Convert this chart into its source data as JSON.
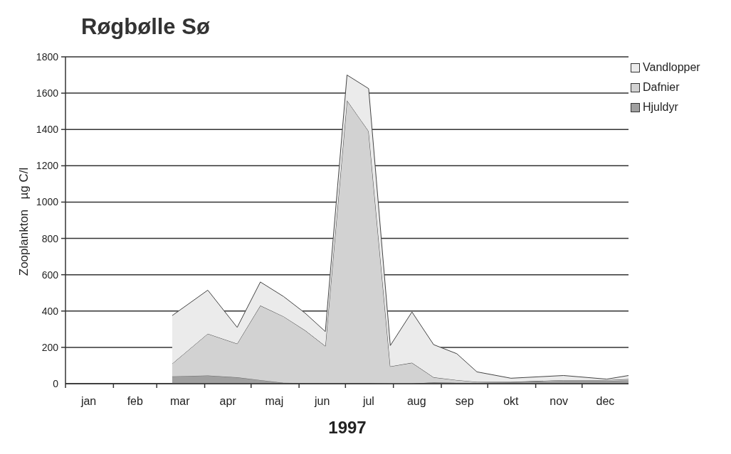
{
  "chart_data": {
    "type": "area",
    "stacked": true,
    "title": "Røgbølle Sø",
    "xlabel": "1997",
    "ylabel": "Zooplankton   µg C/l",
    "x": [
      "1997-03-11",
      "1997-04-03",
      "1997-04-22",
      "1997-05-07",
      "1997-05-22",
      "1997-06-05",
      "1997-06-18",
      "1997-07-02",
      "1997-07-16",
      "1997-07-30",
      "1997-08-13",
      "1997-08-27",
      "1997-09-11",
      "1997-09-24",
      "1997-10-16",
      "1997-11-19",
      "1997-12-17",
      "1997-12-31"
    ],
    "series": [
      {
        "name": "Hjuldyr",
        "color": "#a0a0a0",
        "values": [
          40,
          45,
          35,
          20,
          5,
          3,
          2,
          2,
          2,
          0,
          0,
          8,
          5,
          5,
          8,
          15,
          15,
          18
        ]
      },
      {
        "name": "Dafnier",
        "color": "#d2d2d2",
        "values": [
          70,
          230,
          185,
          410,
          365,
          290,
          205,
          1558,
          1388,
          95,
          115,
          27,
          15,
          5,
          2,
          5,
          5,
          7
        ]
      },
      {
        "name": "Vandlopper",
        "color": "#ebebeb",
        "values": [
          265,
          240,
          90,
          130,
          110,
          95,
          80,
          140,
          235,
          115,
          280,
          180,
          145,
          55,
          20,
          25,
          5,
          20
        ]
      }
    ],
    "xlim": [
      "1997-01-01",
      "1997-12-31"
    ],
    "xticks": [
      {
        "value": "1997-01-01",
        "label": null
      },
      {
        "value": "1997-01-16",
        "label": "jan"
      },
      {
        "value": "1997-02-01",
        "label": null
      },
      {
        "value": "1997-02-15",
        "label": "feb"
      },
      {
        "value": "1997-03-01",
        "label": null
      },
      {
        "value": "1997-03-16",
        "label": "mar"
      },
      {
        "value": "1997-04-01",
        "label": null
      },
      {
        "value": "1997-04-16",
        "label": "apr"
      },
      {
        "value": "1997-05-01",
        "label": null
      },
      {
        "value": "1997-05-16",
        "label": "maj"
      },
      {
        "value": "1997-06-01",
        "label": null
      },
      {
        "value": "1997-06-16",
        "label": "jun"
      },
      {
        "value": "1997-07-01",
        "label": null
      },
      {
        "value": "1997-07-16",
        "label": "jul"
      },
      {
        "value": "1997-08-01",
        "label": null
      },
      {
        "value": "1997-08-16",
        "label": "aug"
      },
      {
        "value": "1997-09-01",
        "label": null
      },
      {
        "value": "1997-09-16",
        "label": "sep"
      },
      {
        "value": "1997-10-01",
        "label": null
      },
      {
        "value": "1997-10-16",
        "label": "okt"
      },
      {
        "value": "1997-11-01",
        "label": null
      },
      {
        "value": "1997-11-16",
        "label": "nov"
      },
      {
        "value": "1997-12-01",
        "label": null
      },
      {
        "value": "1997-12-16",
        "label": "dec"
      }
    ],
    "ylim": [
      0,
      1800
    ],
    "yticks": [
      0,
      200,
      400,
      600,
      800,
      1000,
      1200,
      1400,
      1600,
      1800
    ],
    "grid": "y",
    "legend": "top right"
  }
}
